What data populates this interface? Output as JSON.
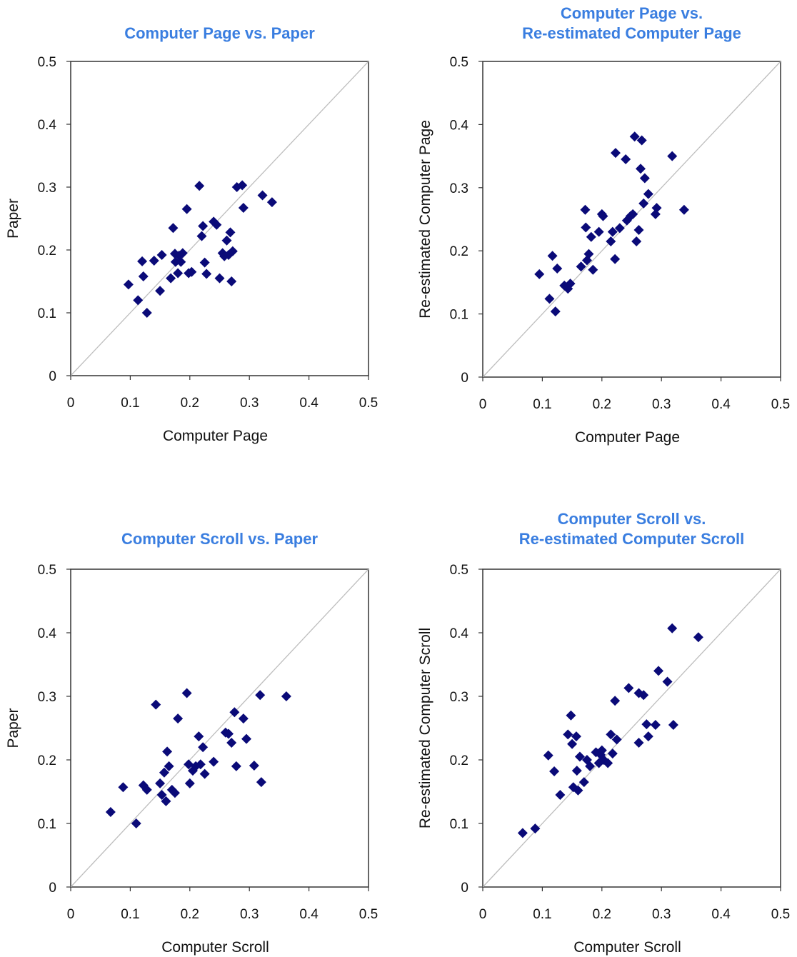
{
  "chart_data": [
    {
      "type": "scatter",
      "title": "Computer Page vs. Paper",
      "xlabel": "Computer Page",
      "ylabel": "Paper",
      "xlim": [
        0,
        0.5
      ],
      "ylim": [
        0,
        0.5
      ],
      "xticks": [
        "0",
        "0.1",
        "0.2",
        "0.3",
        "0.4",
        "0.5"
      ],
      "yticks": [
        "0",
        "0.1",
        "0.2",
        "0.3",
        "0.4",
        "0.5"
      ],
      "reference_line": "y = x",
      "marker": "diamond",
      "marker_color": "#0a0a78",
      "grid": false,
      "x": [
        0.097,
        0.113,
        0.12,
        0.122,
        0.128,
        0.14,
        0.15,
        0.153,
        0.168,
        0.172,
        0.175,
        0.176,
        0.18,
        0.182,
        0.185,
        0.188,
        0.195,
        0.198,
        0.203,
        0.216,
        0.22,
        0.222,
        0.225,
        0.228,
        0.24,
        0.245,
        0.25,
        0.255,
        0.258,
        0.262,
        0.265,
        0.268,
        0.27,
        0.272,
        0.279,
        0.288,
        0.29,
        0.322,
        0.338
      ],
      "y": [
        0.145,
        0.12,
        0.182,
        0.158,
        0.1,
        0.183,
        0.135,
        0.192,
        0.155,
        0.235,
        0.194,
        0.181,
        0.163,
        0.191,
        0.181,
        0.195,
        0.265,
        0.163,
        0.165,
        0.302,
        0.222,
        0.238,
        0.18,
        0.162,
        0.245,
        0.24,
        0.155,
        0.195,
        0.19,
        0.215,
        0.192,
        0.228,
        0.15,
        0.198,
        0.3,
        0.303,
        0.267,
        0.287,
        0.276
      ]
    },
    {
      "type": "scatter",
      "title": "Computer Page vs.\nRe-estimated Computer Page",
      "xlabel": "Computer Page",
      "ylabel": "Re-estimated Computer Page",
      "xlim": [
        0,
        0.5
      ],
      "ylim": [
        0,
        0.5
      ],
      "xticks": [
        "0",
        "0.1",
        "0.2",
        "0.3",
        "0.4",
        "0.5"
      ],
      "yticks": [
        "0",
        "0.1",
        "0.2",
        "0.3",
        "0.4",
        "0.5"
      ],
      "reference_line": "y = x",
      "marker": "diamond",
      "marker_color": "#0a0a78",
      "grid": false,
      "x": [
        0.095,
        0.112,
        0.117,
        0.122,
        0.125,
        0.137,
        0.143,
        0.147,
        0.165,
        0.172,
        0.173,
        0.175,
        0.178,
        0.182,
        0.185,
        0.195,
        0.2,
        0.202,
        0.215,
        0.218,
        0.222,
        0.223,
        0.23,
        0.24,
        0.242,
        0.248,
        0.252,
        0.255,
        0.258,
        0.262,
        0.265,
        0.267,
        0.27,
        0.272,
        0.278,
        0.29,
        0.292,
        0.318,
        0.338
      ],
      "y": [
        0.163,
        0.124,
        0.192,
        0.104,
        0.172,
        0.145,
        0.14,
        0.148,
        0.175,
        0.265,
        0.237,
        0.185,
        0.195,
        0.222,
        0.17,
        0.23,
        0.258,
        0.255,
        0.215,
        0.23,
        0.187,
        0.355,
        0.236,
        0.345,
        0.248,
        0.255,
        0.258,
        0.381,
        0.215,
        0.233,
        0.33,
        0.375,
        0.275,
        0.315,
        0.29,
        0.258,
        0.268,
        0.35,
        0.265
      ]
    },
    {
      "type": "scatter",
      "title": "Computer Scroll vs. Paper",
      "xlabel": "Computer Scroll",
      "ylabel": "Paper",
      "xlim": [
        0,
        0.5
      ],
      "ylim": [
        0,
        0.5
      ],
      "xticks": [
        "0",
        "0.1",
        "0.2",
        "0.3",
        "0.4",
        "0.5"
      ],
      "yticks": [
        "0",
        "0.1",
        "0.2",
        "0.3",
        "0.4",
        "0.5"
      ],
      "reference_line": "y = x",
      "marker": "diamond",
      "marker_color": "#0a0a78",
      "grid": false,
      "x": [
        0.067,
        0.088,
        0.11,
        0.122,
        0.128,
        0.143,
        0.15,
        0.153,
        0.157,
        0.16,
        0.162,
        0.165,
        0.17,
        0.175,
        0.18,
        0.195,
        0.198,
        0.2,
        0.205,
        0.21,
        0.215,
        0.218,
        0.222,
        0.225,
        0.24,
        0.26,
        0.265,
        0.27,
        0.275,
        0.278,
        0.29,
        0.295,
        0.308,
        0.318,
        0.32,
        0.362
      ],
      "y": [
        0.118,
        0.157,
        0.1,
        0.16,
        0.153,
        0.287,
        0.163,
        0.145,
        0.18,
        0.135,
        0.213,
        0.19,
        0.153,
        0.148,
        0.265,
        0.305,
        0.193,
        0.163,
        0.183,
        0.19,
        0.237,
        0.193,
        0.22,
        0.178,
        0.197,
        0.243,
        0.241,
        0.227,
        0.275,
        0.19,
        0.265,
        0.233,
        0.191,
        0.302,
        0.165,
        0.3
      ]
    },
    {
      "type": "scatter",
      "title": "Computer Scroll vs.\nRe-estimated Computer Scroll",
      "xlabel": "Computer Scroll",
      "ylabel": "Re-estimated Computer Scroll",
      "xlim": [
        0,
        0.5
      ],
      "ylim": [
        0,
        0.5
      ],
      "xticks": [
        "0",
        "0.1",
        "0.2",
        "0.3",
        "0.4",
        "0.5"
      ],
      "yticks": [
        "0",
        "0.1",
        "0.2",
        "0.3",
        "0.4",
        "0.5"
      ],
      "reference_line": "y = x",
      "marker": "diamond",
      "marker_color": "#0a0a78",
      "grid": false,
      "x": [
        0.067,
        0.088,
        0.11,
        0.12,
        0.13,
        0.143,
        0.148,
        0.15,
        0.152,
        0.157,
        0.158,
        0.16,
        0.163,
        0.17,
        0.175,
        0.18,
        0.19,
        0.195,
        0.198,
        0.2,
        0.203,
        0.21,
        0.215,
        0.218,
        0.222,
        0.225,
        0.245,
        0.262,
        0.262,
        0.27,
        0.275,
        0.278,
        0.29,
        0.295,
        0.31,
        0.318,
        0.32,
        0.362
      ],
      "y": [
        0.085,
        0.092,
        0.207,
        0.182,
        0.145,
        0.24,
        0.27,
        0.225,
        0.157,
        0.237,
        0.183,
        0.152,
        0.205,
        0.165,
        0.2,
        0.19,
        0.212,
        0.195,
        0.208,
        0.215,
        0.2,
        0.195,
        0.24,
        0.21,
        0.293,
        0.232,
        0.313,
        0.227,
        0.305,
        0.302,
        0.256,
        0.237,
        0.255,
        0.34,
        0.323,
        0.407,
        0.255,
        0.393
      ]
    }
  ]
}
